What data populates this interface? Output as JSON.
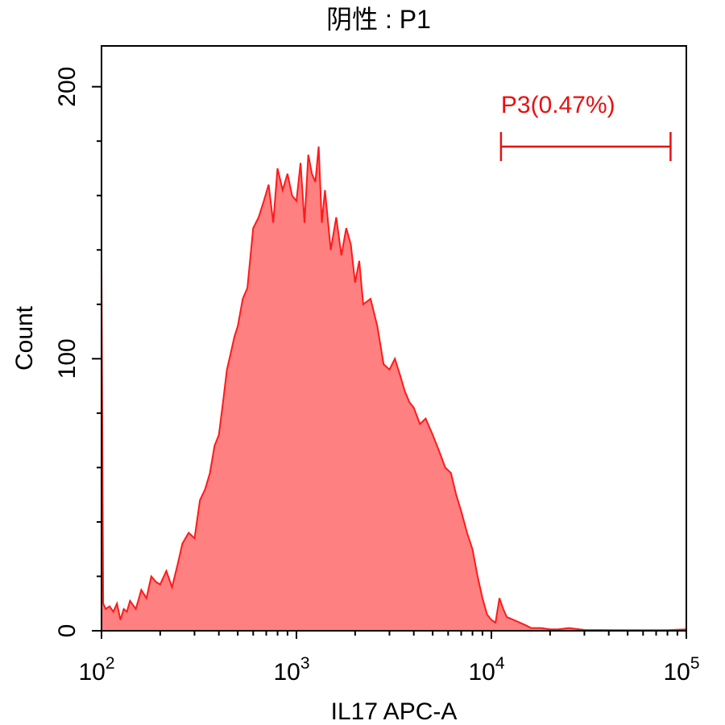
{
  "chart_data": {
    "type": "area",
    "title": "阴性 : P1",
    "xlabel": "IL17 APC-A",
    "ylabel": "Count",
    "x_scale": "log",
    "xlim": [
      100,
      100000
    ],
    "ylim": [
      0,
      215
    ],
    "x_ticks": [
      {
        "base": "10",
        "exp": "2",
        "value": 100
      },
      {
        "base": "10",
        "exp": "3",
        "value": 1000
      },
      {
        "base": "10",
        "exp": "4",
        "value": 10000
      },
      {
        "base": "10",
        "exp": "5",
        "value": 100000
      }
    ],
    "y_ticks": [
      {
        "label": "0",
        "value": 0
      },
      {
        "label": "100",
        "value": 100
      },
      {
        "label": "200",
        "value": 200
      }
    ],
    "grid": false,
    "series_color": "#ff1a1a",
    "fill_color": "#ff8080",
    "series": [
      {
        "x": [
          100,
          102,
          105,
          110,
          115,
          120,
          125,
          130,
          135,
          140,
          150,
          160,
          170,
          180,
          190,
          200,
          215,
          230,
          245,
          260,
          280,
          300,
          320,
          340,
          360,
          380,
          400,
          420,
          440,
          460,
          480,
          500,
          530,
          560,
          600,
          640,
          680,
          720,
          760,
          800,
          850,
          900,
          950,
          1000,
          1050,
          1100,
          1150,
          1200,
          1250,
          1300,
          1350,
          1400,
          1500,
          1600,
          1700,
          1800,
          1900,
          2000,
          2100,
          2200,
          2400,
          2600,
          2800,
          3000,
          3200,
          3400,
          3600,
          3800,
          4000,
          4300,
          4600,
          5000,
          5400,
          5800,
          6200,
          6600,
          7000,
          7500,
          8000,
          8500,
          9000,
          9500,
          10000,
          10500,
          11000,
          11500,
          12000,
          13000,
          14000,
          15000,
          16000,
          18000,
          20000,
          22000,
          25000,
          30000,
          50000,
          80000,
          100000
        ],
        "y": [
          135,
          10,
          8,
          9,
          7,
          10,
          4,
          8,
          7,
          11,
          8,
          15,
          12,
          20,
          18,
          17,
          22,
          16,
          24,
          32,
          36,
          34,
          48,
          52,
          58,
          68,
          72,
          84,
          96,
          102,
          108,
          112,
          122,
          126,
          148,
          152,
          158,
          164,
          150,
          170,
          162,
          168,
          160,
          158,
          172,
          150,
          175,
          168,
          165,
          178,
          150,
          162,
          140,
          152,
          138,
          148,
          142,
          128,
          136,
          120,
          122,
          112,
          98,
          96,
          100,
          94,
          88,
          84,
          82,
          76,
          78,
          72,
          66,
          60,
          58,
          50,
          44,
          36,
          30,
          20,
          12,
          6,
          4,
          3,
          12,
          8,
          5,
          4,
          3,
          2,
          1,
          1,
          0.5,
          0.5,
          1,
          0.3,
          0.2,
          0.2,
          0.5
        ]
      }
    ],
    "gate": {
      "label": "P3(0.47%)",
      "x_start": 11200,
      "x_end": 83000,
      "y": 178,
      "color": "#e81010"
    }
  }
}
